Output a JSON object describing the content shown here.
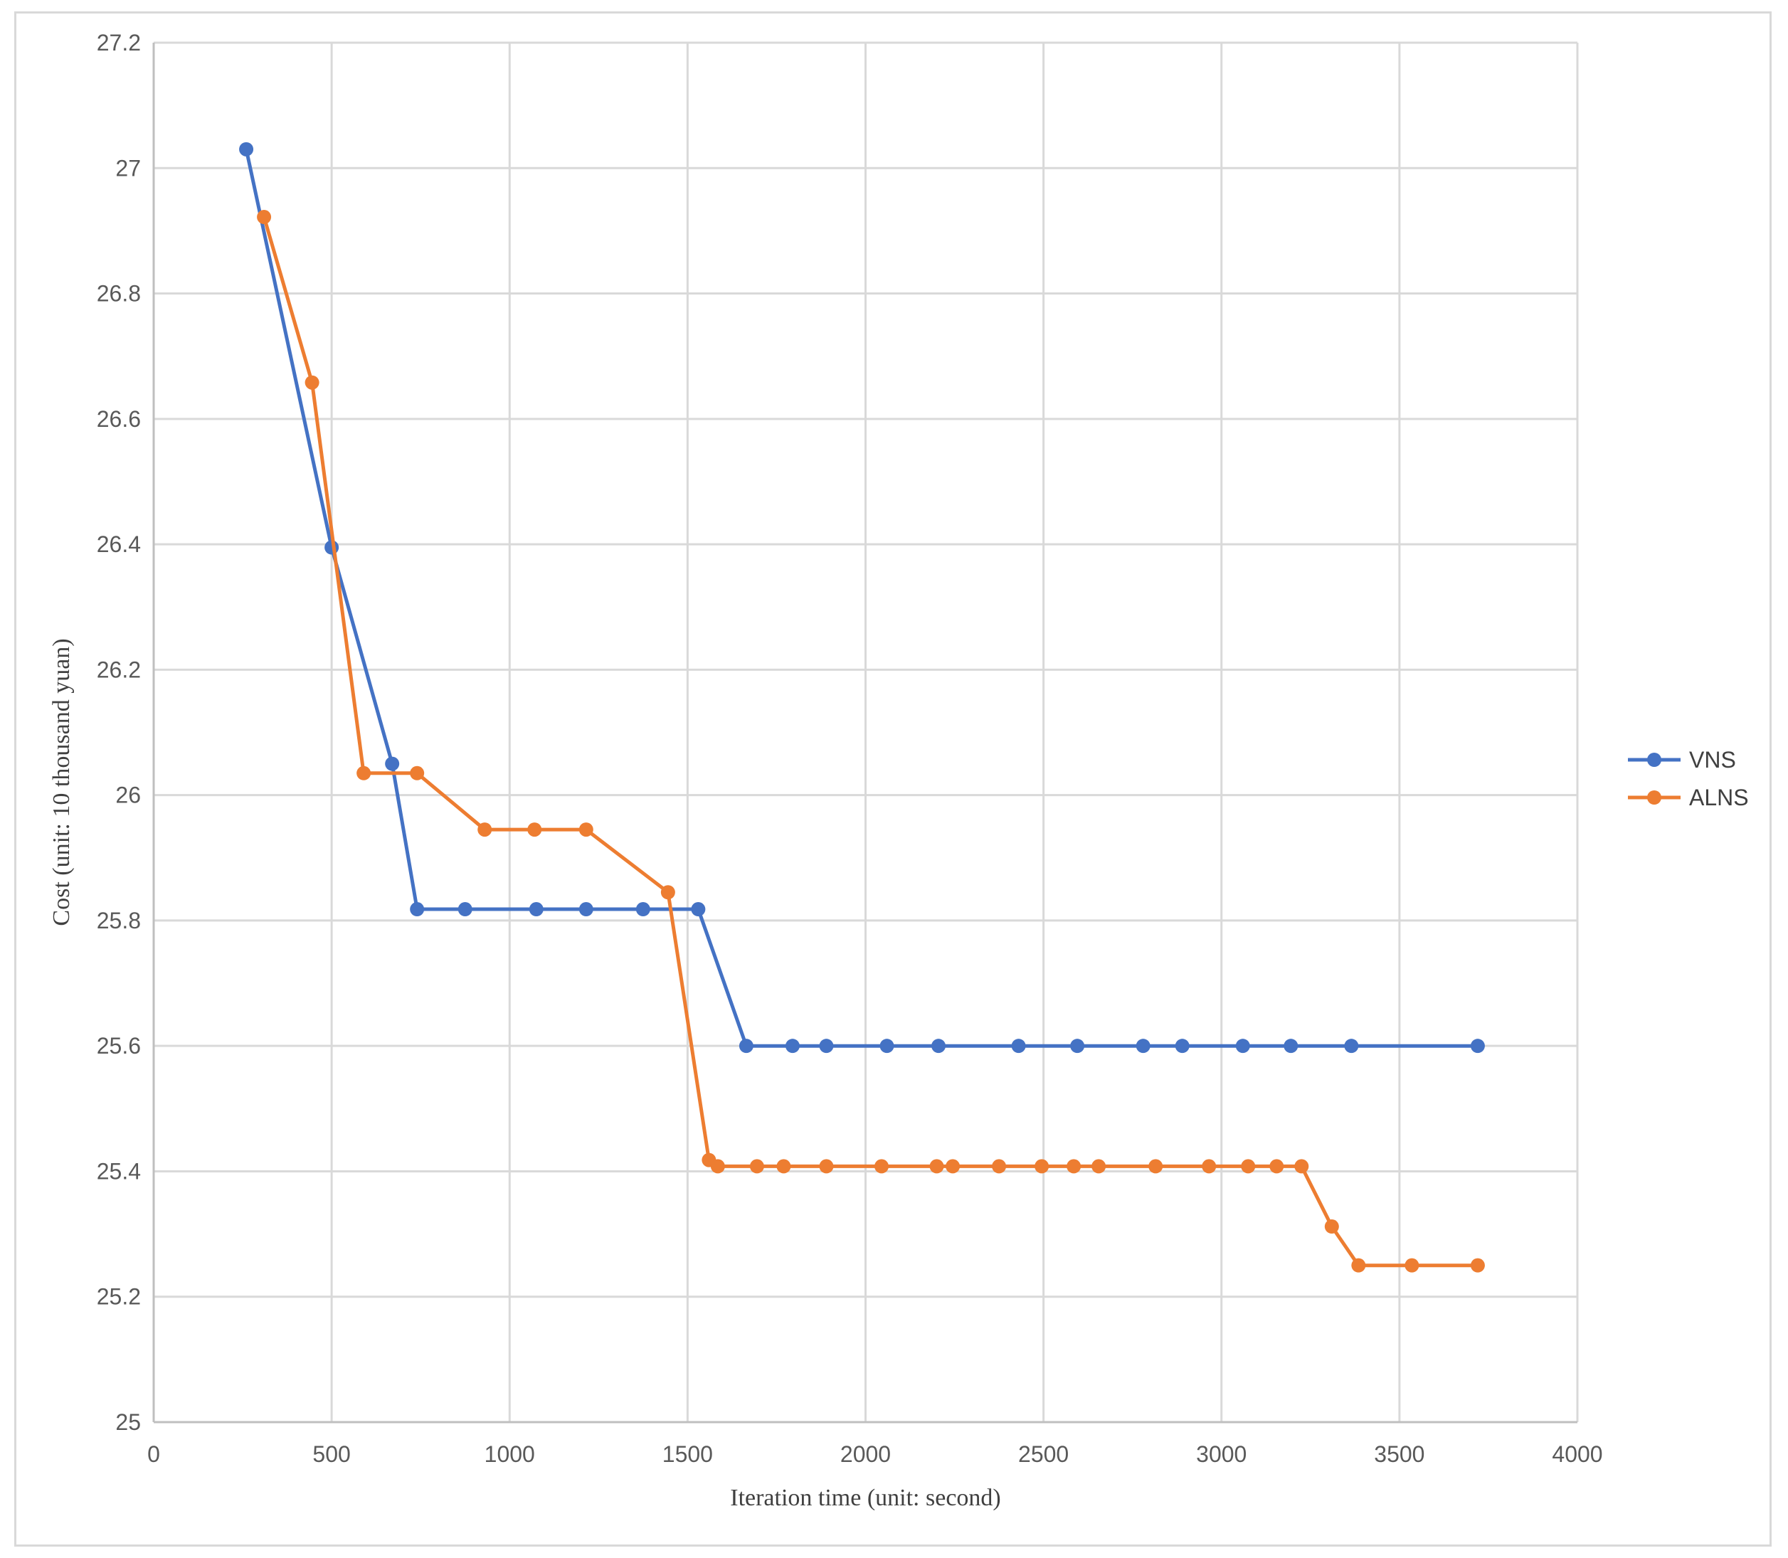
{
  "chart_data": {
    "type": "line",
    "title": "",
    "xlabel": "Iteration time (unit: second)",
    "ylabel": "Cost (unit: 10 thousand yuan)",
    "xlim": [
      0,
      4000
    ],
    "ylim": [
      25,
      27.2
    ],
    "xticks": [
      "0",
      "500",
      "1000",
      "1500",
      "2000",
      "2500",
      "3000",
      "3500",
      "4000"
    ],
    "yticks": [
      "25",
      "25.2",
      "25.4",
      "25.6",
      "25.8",
      "26",
      "26.2",
      "26.4",
      "26.6",
      "26.8",
      "27",
      "27.2"
    ],
    "grid": true,
    "legend_position": "right",
    "series": [
      {
        "name": "VNS",
        "color": "#4472c4",
        "points": [
          [
            260,
            27.03
          ],
          [
            500,
            26.395
          ],
          [
            670,
            26.05
          ],
          [
            740,
            25.818
          ],
          [
            875,
            25.818
          ],
          [
            1075,
            25.818
          ],
          [
            1215,
            25.818
          ],
          [
            1375,
            25.818
          ],
          [
            1530,
            25.818
          ],
          [
            1665,
            25.6
          ],
          [
            1795,
            25.6
          ],
          [
            1890,
            25.6
          ],
          [
            2060,
            25.6
          ],
          [
            2205,
            25.6
          ],
          [
            2430,
            25.6
          ],
          [
            2595,
            25.6
          ],
          [
            2780,
            25.6
          ],
          [
            2890,
            25.6
          ],
          [
            3060,
            25.6
          ],
          [
            3195,
            25.6
          ],
          [
            3365,
            25.6
          ],
          [
            3720,
            25.6
          ]
        ]
      },
      {
        "name": "ALNS",
        "color": "#ed7d31",
        "points": [
          [
            310,
            26.922
          ],
          [
            445,
            26.658
          ],
          [
            590,
            26.035
          ],
          [
            740,
            26.035
          ],
          [
            930,
            25.945
          ],
          [
            1070,
            25.945
          ],
          [
            1215,
            25.945
          ],
          [
            1445,
            25.845
          ],
          [
            1560,
            25.418
          ],
          [
            1585,
            25.408
          ],
          [
            1695,
            25.408
          ],
          [
            1770,
            25.408
          ],
          [
            1890,
            25.408
          ],
          [
            2045,
            25.408
          ],
          [
            2200,
            25.408
          ],
          [
            2245,
            25.408
          ],
          [
            2375,
            25.408
          ],
          [
            2495,
            25.408
          ],
          [
            2585,
            25.408
          ],
          [
            2655,
            25.408
          ],
          [
            2815,
            25.408
          ],
          [
            2965,
            25.408
          ],
          [
            3075,
            25.408
          ],
          [
            3155,
            25.408
          ],
          [
            3225,
            25.408
          ],
          [
            3310,
            25.312
          ],
          [
            3385,
            25.25
          ],
          [
            3535,
            25.25
          ],
          [
            3720,
            25.25
          ]
        ]
      }
    ]
  }
}
